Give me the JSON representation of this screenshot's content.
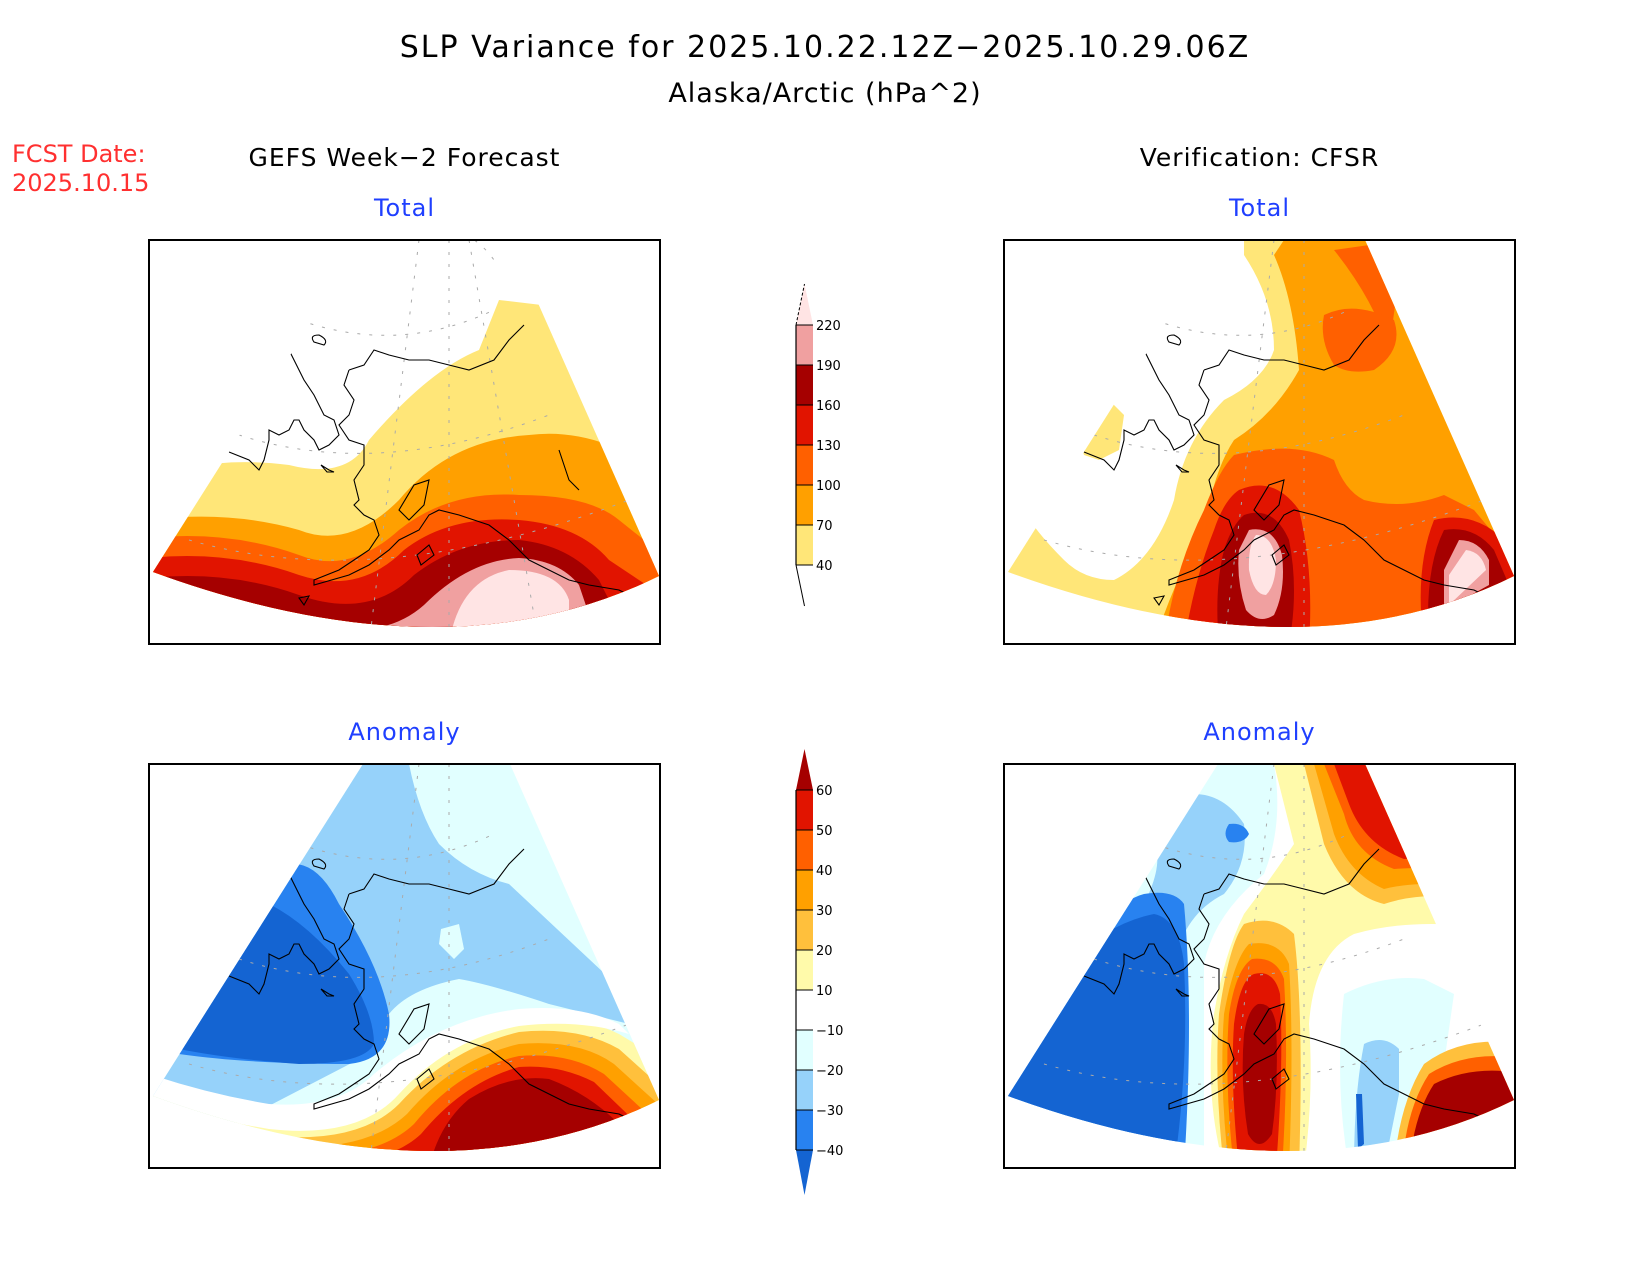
{
  "header": {
    "title": "SLP Variance for 2025.10.22.12Z−2025.10.29.06Z",
    "subtitle": "Alaska/Arctic (hPa^2)",
    "fcst_date_label": "FCST Date:",
    "fcst_date_value": "2025.10.15"
  },
  "columns": {
    "left": "GEFS Week−2 Forecast",
    "right": "Verification: CFSR"
  },
  "panels": {
    "forecast_total": "Total",
    "forecast_anomaly": "Anomaly",
    "verif_total": "Total",
    "verif_anomaly": "Anomaly"
  },
  "chart_data": [
    {
      "type": "heatmap",
      "title": "Total",
      "column": "GEFS Week−2 Forecast",
      "units": "hPa^2",
      "colorbar_levels": [
        40,
        70,
        100,
        130,
        160,
        190,
        220
      ],
      "colorbar_colors": [
        "#ffe678",
        "#ffa000",
        "#ff6000",
        "#e11400",
        "#a50000",
        "#f0a0a0",
        "#ffe4e4"
      ],
      "description": "Variance increases from north (<40) to south; maximum >220 in Gulf of Alaska"
    },
    {
      "type": "heatmap",
      "title": "Total",
      "column": "Verification: CFSR",
      "units": "hPa^2",
      "colorbar_levels": [
        40,
        70,
        100,
        130,
        160,
        190,
        220
      ],
      "colorbar_colors": [
        "#ffe678",
        "#ffa000",
        "#ff6000",
        "#e11400",
        "#a50000",
        "#f0a0a0",
        "#ffe4e4"
      ],
      "description": "Maxima >220 over Alaska Peninsula and eastern Gulf of Alaska; low variance over Chukotka/Bering"
    },
    {
      "type": "heatmap",
      "title": "Anomaly",
      "column": "GEFS Week−2 Forecast",
      "units": "hPa^2",
      "colorbar_levels": [
        -40,
        -30,
        -20,
        -10,
        10,
        20,
        30,
        40,
        50,
        60
      ],
      "colorbar_colors": [
        "#1464d2",
        "#2882f0",
        "#96d2fa",
        "#e1ffff",
        "#ffffff",
        "#fffaaa",
        "#ffc03c",
        "#ffa000",
        "#ff6000",
        "#e11400",
        "#a50000"
      ],
      "description": "Negative anomalies (< -40) over Bering Sea; positive (>60) over Gulf of Alaska"
    },
    {
      "type": "heatmap",
      "title": "Anomaly",
      "column": "Verification: CFSR",
      "units": "hPa^2",
      "colorbar_levels": [
        -40,
        -30,
        -20,
        -10,
        10,
        20,
        30,
        40,
        50,
        60
      ],
      "colorbar_colors": [
        "#1464d2",
        "#2882f0",
        "#96d2fa",
        "#e1ffff",
        "#ffffff",
        "#fffaaa",
        "#ffc03c",
        "#ffa000",
        "#ff6000",
        "#e11400",
        "#a50000"
      ],
      "description": "Negative anomalies (< -40) over western Bering Sea; positive (>60) over Alaska Peninsula and SE Gulf of Alaska"
    }
  ],
  "colorbars": {
    "total": {
      "labels": [
        "220",
        "190",
        "160",
        "130",
        "100",
        "70",
        "40"
      ],
      "colors": [
        "#ffe4e4",
        "#f0a0a0",
        "#a50000",
        "#e11400",
        "#ff6000",
        "#ffa000",
        "#ffe678"
      ]
    },
    "anomaly": {
      "labels": [
        "60",
        "50",
        "40",
        "30",
        "20",
        "10",
        "−10",
        "−20",
        "−30",
        "−40"
      ],
      "colors": [
        "#a50000",
        "#e11400",
        "#ff6000",
        "#ffa000",
        "#ffc03c",
        "#fffaaa",
        "#ffffff",
        "#e1ffff",
        "#96d2fa",
        "#2882f0",
        "#1464d2"
      ]
    }
  }
}
